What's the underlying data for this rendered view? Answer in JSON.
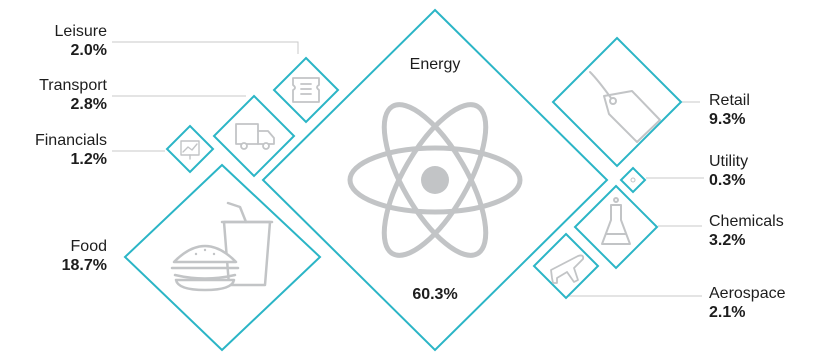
{
  "chart_data": {
    "type": "diamond-treemap",
    "unit": "%",
    "colors": {
      "outline": "#2bb5c6",
      "icon": "#c2c4c6",
      "leader": "#c9c9c9"
    },
    "categories": [
      {
        "name": "Energy",
        "value": 60.3,
        "icon": "atom-icon"
      },
      {
        "name": "Food",
        "value": 18.7,
        "icon": "burger-and-drink-icon"
      },
      {
        "name": "Retail",
        "value": 9.3,
        "icon": "price-tag-icon"
      },
      {
        "name": "Chemicals",
        "value": 3.2,
        "icon": "flask-icon"
      },
      {
        "name": "Transport",
        "value": 2.8,
        "icon": "truck-icon"
      },
      {
        "name": "Aerospace",
        "value": 2.1,
        "icon": "airplane-icon"
      },
      {
        "name": "Leisure",
        "value": 2.0,
        "icon": "ticket-icon"
      },
      {
        "name": "Financials",
        "value": 1.2,
        "icon": "chart-board-icon"
      },
      {
        "name": "Utility",
        "value": 0.3,
        "icon": "utility-icon"
      }
    ]
  },
  "display": {
    "energy": {
      "name": "Energy",
      "value": "60.3%"
    },
    "food": {
      "name": "Food",
      "value": "18.7%"
    },
    "retail": {
      "name": "Retail",
      "value": "9.3%"
    },
    "chemicals": {
      "name": "Chemicals",
      "value": "3.2%"
    },
    "transport": {
      "name": "Transport",
      "value": "2.8%"
    },
    "aerospace": {
      "name": "Aerospace",
      "value": "2.1%"
    },
    "leisure": {
      "name": "Leisure",
      "value": "2.0%"
    },
    "financials": {
      "name": "Financials",
      "value": "1.2%"
    },
    "utility": {
      "name": "Utility",
      "value": "0.3%"
    }
  }
}
